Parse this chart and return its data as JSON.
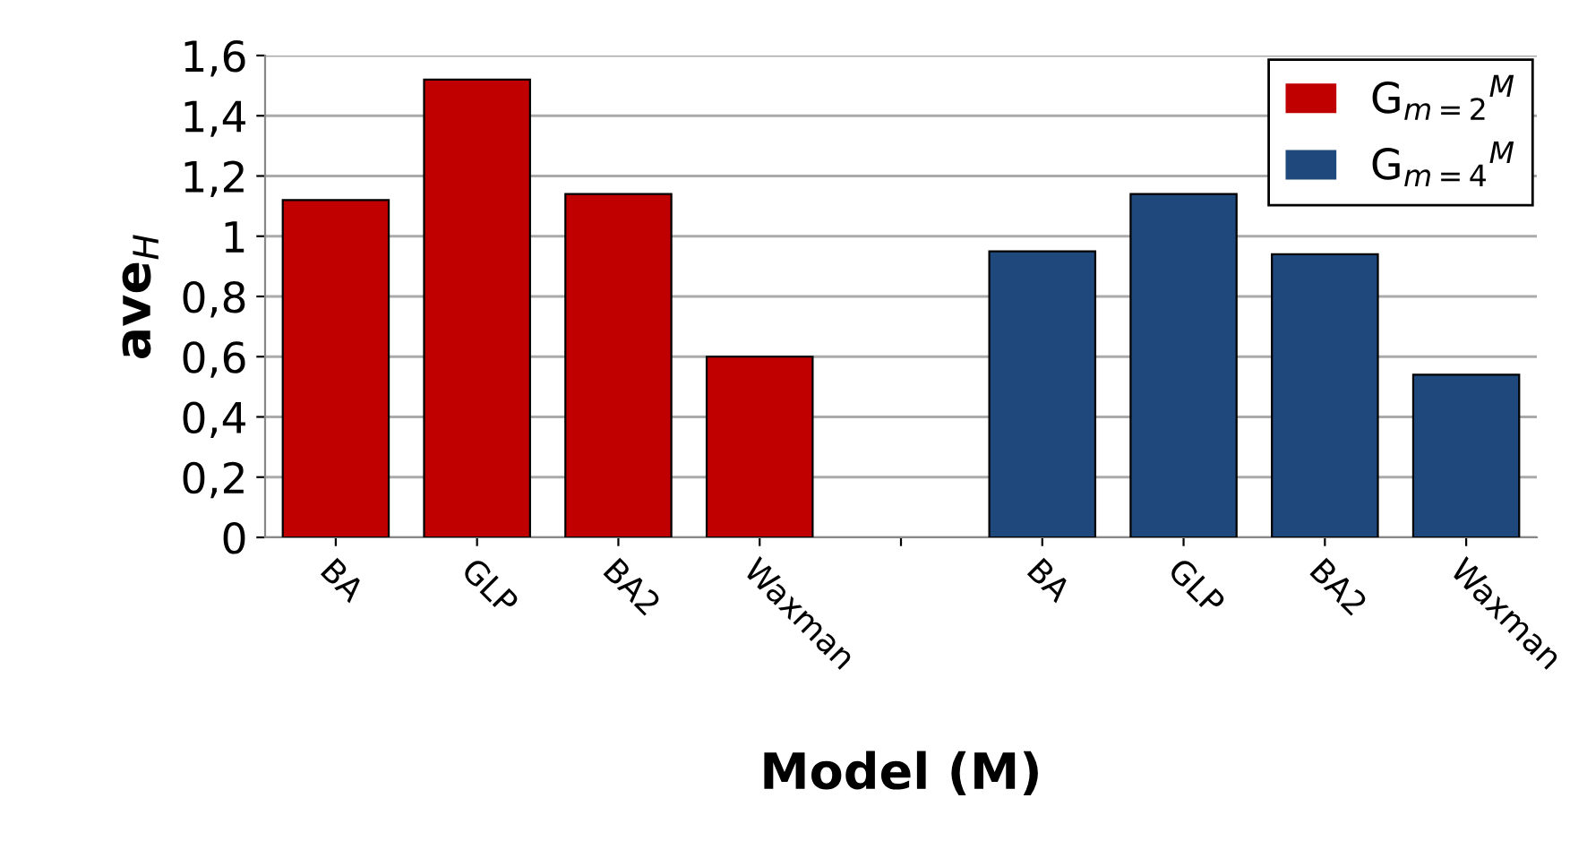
{
  "chart_data": {
    "type": "bar",
    "xlabel": "Model (M)",
    "ylabel": "ave$_{H}$",
    "categories": [
      "BA",
      "GLP",
      "BA2",
      "Waxman",
      null,
      "BA",
      "GLP",
      "BA2",
      "Waxman"
    ],
    "series": [
      {
        "name": "G$_{m=2}$$^{M}$",
        "color": "#c00000",
        "values": [
          1.12,
          1.52,
          1.14,
          0.6,
          null,
          null,
          null,
          null,
          null
        ]
      },
      {
        "name": "G$_{m=4}$$^{M}$",
        "color": "#1f497d",
        "values": [
          null,
          null,
          null,
          null,
          null,
          0.95,
          1.14,
          0.94,
          0.54
        ]
      }
    ],
    "ylim": [
      0,
      1.6
    ],
    "yticks": [
      0,
      {
        "value": 0.2,
        "label": "0,2"
      },
      {
        "value": 0.4,
        "label": "0,4"
      },
      {
        "value": 0.6,
        "label": "0,6"
      },
      {
        "value": 0.8,
        "label": "0,8"
      },
      1,
      {
        "value": 1.2,
        "label": "1,2"
      },
      {
        "value": 1.4,
        "label": "1,4"
      },
      {
        "value": 1.6,
        "label": "1,6"
      }
    ],
    "grid": "y",
    "legend": "top right"
  }
}
